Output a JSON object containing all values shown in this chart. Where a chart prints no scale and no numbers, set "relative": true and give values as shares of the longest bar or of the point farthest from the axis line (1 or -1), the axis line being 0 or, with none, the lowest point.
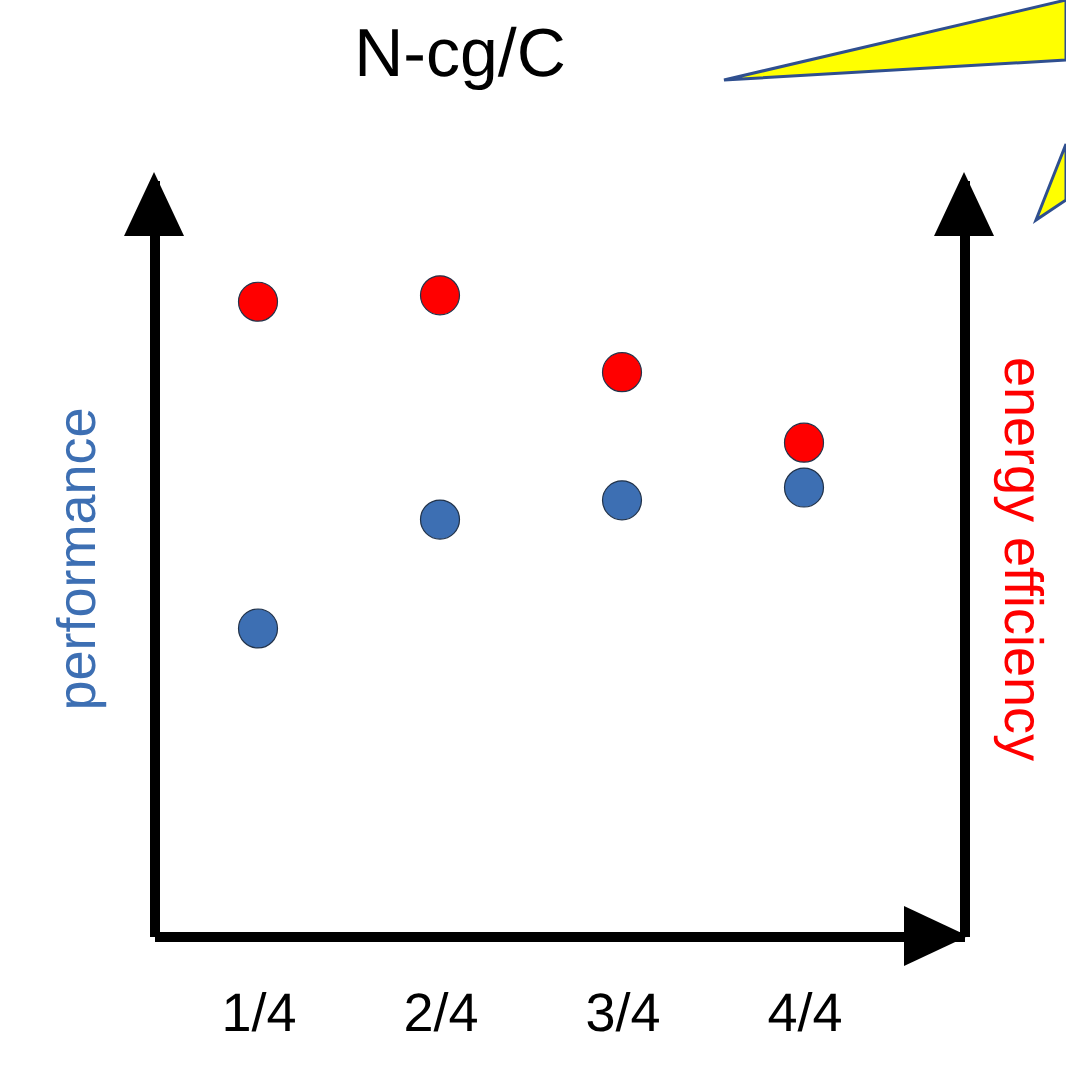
{
  "chart_data": {
    "type": "scatter",
    "title": "N-cg/C",
    "ylabel": "performance",
    "y2label": "energy efficiency",
    "categories": [
      "1/4",
      "2/4",
      "3/4",
      "4/4"
    ],
    "relative": true,
    "marker": "circle",
    "series": [
      {
        "color": "#3d6fb3",
        "values": [
          0.48,
          0.65,
          0.68,
          0.7
        ]
      },
      {
        "color": "#ff0000",
        "values": [
          0.99,
          1,
          0.88,
          0.77
        ]
      }
    ]
  }
}
